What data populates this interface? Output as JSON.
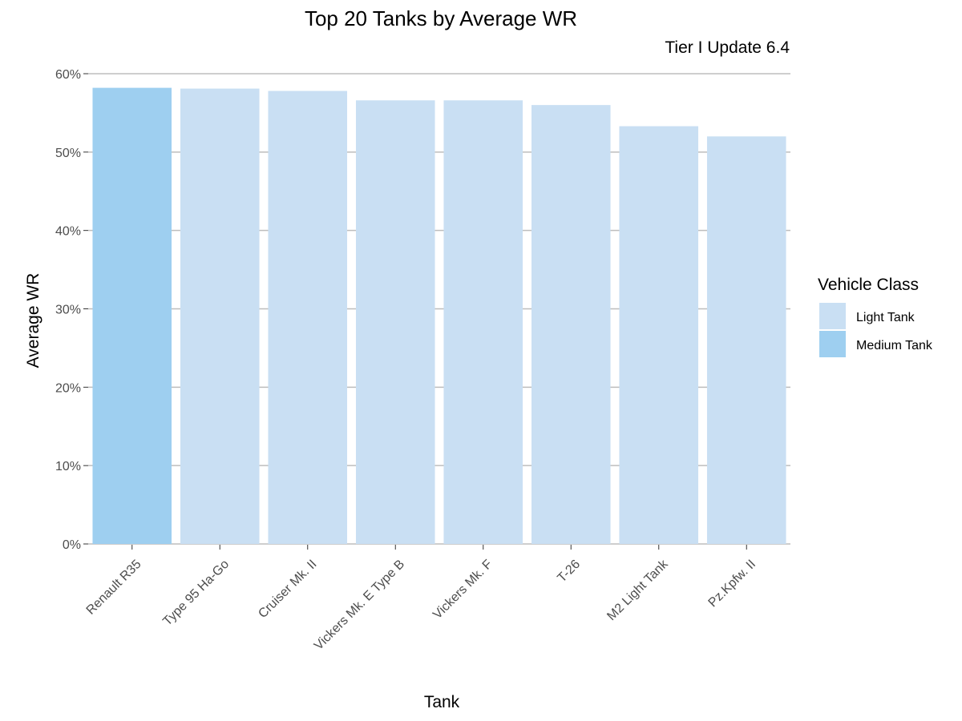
{
  "chart_data": {
    "type": "bar",
    "title": "Top 20 Tanks by Average WR",
    "subtitle": "Tier I Update 6.4",
    "xlabel": "Tank",
    "ylabel": "Average WR",
    "ylim": [
      0,
      0.6
    ],
    "yticks": [
      0,
      0.1,
      0.2,
      0.3,
      0.4,
      0.5,
      0.6
    ],
    "ytick_labels": [
      "0%",
      "10%",
      "20%",
      "30%",
      "40%",
      "50%",
      "60%"
    ],
    "categories": [
      "Renault R35",
      "Type 95 Ha-Go",
      "Cruiser Mk. II",
      "Vickers Mk. E Type B",
      "Vickers Mk. F",
      "T-26",
      "M2 Light Tank",
      "Pz.Kpfw. II"
    ],
    "values": [
      0.582,
      0.581,
      0.578,
      0.566,
      0.566,
      0.56,
      0.533,
      0.52
    ],
    "classes": [
      "Medium Tank",
      "Light Tank",
      "Light Tank",
      "Light Tank",
      "Light Tank",
      "Light Tank",
      "Light Tank",
      "Light Tank"
    ],
    "grid": true,
    "legend": {
      "title": "Vehicle Class",
      "position": "right",
      "entries": [
        {
          "name": "Light Tank",
          "color": "#c9dff3"
        },
        {
          "name": "Medium Tank",
          "color": "#9ecff0"
        }
      ]
    }
  }
}
